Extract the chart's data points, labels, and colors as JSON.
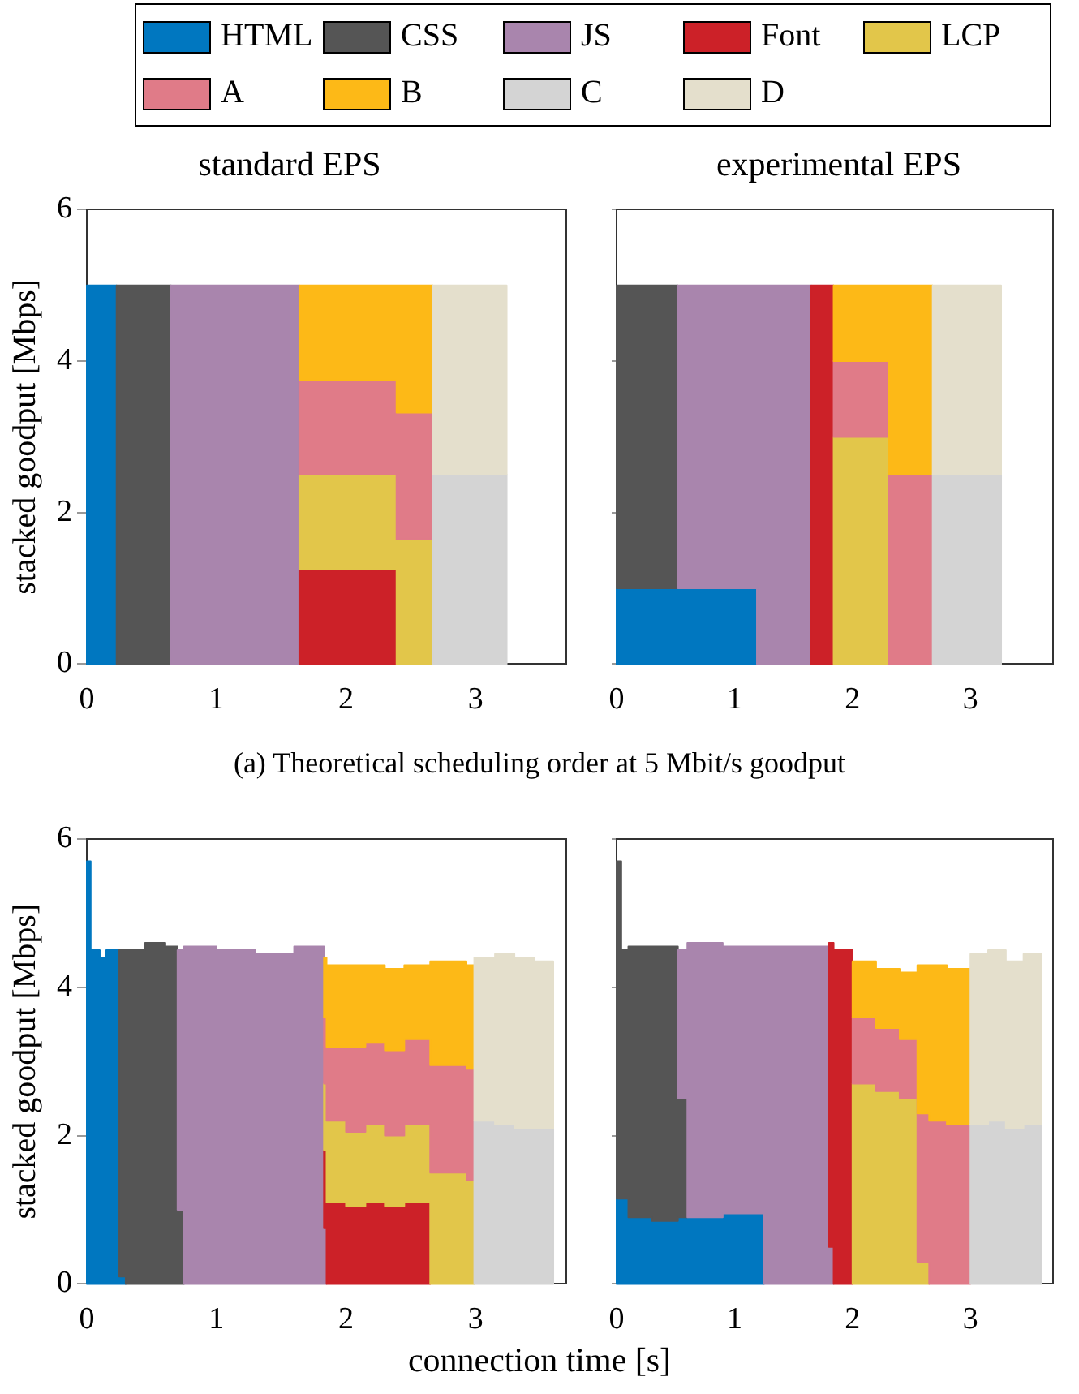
{
  "chart_data": [
    {
      "type": "area",
      "stacked": true,
      "title": "standard EPS",
      "ylabel": "stacked goodput [Mbps]",
      "legend": "top",
      "annotations": [
        "(a) Theoretical scheduling order at 5 Mbit/s goodput"
      ],
      "x": [
        0,
        0.23,
        0.23,
        0.65,
        0.65,
        1.64,
        1.64,
        2.39,
        2.39,
        2.67,
        2.67,
        3.24
      ],
      "xlim": [
        0,
        3.7
      ],
      "xticks": [
        0,
        1,
        2,
        3
      ],
      "ylim": [
        0,
        6
      ],
      "yticks": [
        0,
        2,
        4,
        6
      ],
      "series": [
        {
          "name": "HTML",
          "color": "#0077c0",
          "values": [
            5,
            5,
            null,
            null,
            null,
            null,
            null,
            null,
            null,
            null,
            null,
            null
          ]
        },
        {
          "name": "CSS",
          "color": "#555555",
          "values": [
            null,
            null,
            5,
            5,
            null,
            null,
            null,
            null,
            null,
            null,
            null,
            null
          ]
        },
        {
          "name": "JS",
          "color": "#a985ad",
          "values": [
            null,
            null,
            null,
            null,
            5,
            5,
            null,
            null,
            null,
            null,
            null,
            null
          ]
        },
        {
          "name": "Font",
          "color": "#cc2128",
          "values": [
            null,
            null,
            null,
            null,
            null,
            null,
            1.25,
            1.25,
            null,
            null,
            null,
            null
          ]
        },
        {
          "name": "LCP",
          "color": "#e2c64a",
          "values": [
            null,
            null,
            null,
            null,
            null,
            null,
            1.25,
            1.25,
            1.65,
            1.65,
            null,
            null
          ]
        },
        {
          "name": "A",
          "color": "#e07b88",
          "values": [
            null,
            null,
            null,
            null,
            null,
            null,
            1.25,
            1.25,
            1.67,
            1.67,
            null,
            null
          ]
        },
        {
          "name": "B",
          "color": "#fdb917",
          "values": [
            null,
            null,
            null,
            null,
            null,
            null,
            1.25,
            1.25,
            1.68,
            1.68,
            null,
            null
          ]
        },
        {
          "name": "C",
          "color": "#d4d4d4",
          "values": [
            null,
            null,
            null,
            null,
            null,
            null,
            null,
            null,
            null,
            null,
            2.5,
            2.5
          ]
        },
        {
          "name": "D",
          "color": "#e4dfcc",
          "values": [
            null,
            null,
            null,
            null,
            null,
            null,
            null,
            null,
            null,
            null,
            2.5,
            2.5
          ]
        }
      ]
    },
    {
      "type": "area",
      "stacked": true,
      "title": "experimental EPS",
      "tick_labels": "x",
      "x": [
        0,
        0.52,
        0.52,
        1.19,
        1.19,
        1.65,
        1.65,
        1.84,
        1.84,
        2.31,
        2.31,
        2.68,
        2.68,
        3.26
      ],
      "xlim": [
        0,
        3.7
      ],
      "xticks": [
        0,
        1,
        2,
        3
      ],
      "ylim": [
        0,
        6
      ],
      "yticks": [
        0,
        2,
        4,
        6
      ],
      "series": [
        {
          "color": "#0077c0",
          "values": [
            1,
            1,
            1,
            1,
            null,
            null,
            null,
            null,
            null,
            null,
            null,
            null,
            null,
            null
          ]
        },
        {
          "color": "#555555",
          "values": [
            4,
            4,
            null,
            null,
            null,
            null,
            null,
            null,
            null,
            null,
            null,
            null,
            null,
            null
          ]
        },
        {
          "color": "#a985ad",
          "values": [
            null,
            null,
            4,
            4,
            5,
            5,
            null,
            null,
            null,
            null,
            null,
            null,
            null,
            null
          ]
        },
        {
          "color": "#cc2128",
          "values": [
            null,
            null,
            null,
            null,
            null,
            null,
            5,
            5,
            null,
            null,
            null,
            null,
            null,
            null
          ]
        },
        {
          "color": "#e2c64a",
          "values": [
            null,
            null,
            null,
            null,
            null,
            null,
            null,
            null,
            3,
            3,
            null,
            null,
            null,
            null
          ]
        },
        {
          "color": "#e07b88",
          "values": [
            null,
            null,
            null,
            null,
            null,
            null,
            null,
            null,
            1,
            1,
            2.5,
            2.5,
            null,
            null
          ]
        },
        {
          "color": "#fdb917",
          "values": [
            null,
            null,
            null,
            null,
            null,
            null,
            null,
            null,
            1,
            1,
            2.5,
            2.5,
            null,
            null
          ]
        },
        {
          "color": "#d4d4d4",
          "values": [
            null,
            null,
            null,
            null,
            null,
            null,
            null,
            null,
            null,
            null,
            null,
            null,
            2.5,
            2.5
          ]
        },
        {
          "color": "#e4dfcc",
          "values": [
            null,
            null,
            null,
            null,
            null,
            null,
            null,
            null,
            null,
            null,
            null,
            null,
            2.5,
            2.5
          ]
        }
      ]
    },
    {
      "type": "area",
      "stacked": true,
      "ylabel": "stacked goodput [Mbps]",
      "xlabel": "connection time [s]",
      "x": [
        0,
        0.03,
        0.03,
        0.1,
        0.1,
        0.15,
        0.15,
        0.25,
        0.25,
        0.3,
        0.3,
        0.45,
        0.45,
        0.6,
        0.6,
        0.7,
        0.7,
        0.75,
        0.75,
        1.0,
        1.0,
        1.3,
        1.3,
        1.6,
        1.6,
        1.83,
        1.83,
        1.85,
        1.85,
        2.0,
        2.0,
        2.15,
        2.15,
        2.3,
        2.3,
        2.45,
        2.45,
        2.65,
        2.65,
        2.8,
        2.8,
        2.93,
        2.93,
        2.99,
        2.99,
        3.15,
        3.15,
        3.3,
        3.3,
        3.45,
        3.45,
        3.6
      ],
      "xlim": [
        0,
        3.7
      ],
      "xticks": [
        0,
        1,
        2,
        3
      ],
      "ylim": [
        0,
        6
      ],
      "yticks": [
        0,
        2,
        4,
        6
      ],
      "series": [
        {
          "color": "#0077c0",
          "values": [
            5.7,
            5.7,
            4.5,
            4.5,
            4.4,
            4.4,
            4.5,
            4.5,
            0.1,
            0.1,
            null,
            null,
            null,
            null,
            null,
            null,
            null,
            null,
            null,
            null,
            null,
            null,
            null,
            null,
            null,
            null,
            null,
            null,
            null,
            null,
            null,
            null,
            null,
            null,
            null,
            null,
            null,
            null,
            null,
            null,
            null,
            null,
            null,
            null,
            null,
            null,
            null,
            null,
            null,
            null,
            null,
            null
          ]
        },
        {
          "color": "#555555",
          "values": [
            null,
            null,
            null,
            null,
            null,
            null,
            null,
            null,
            4.4,
            4.4,
            4.5,
            4.5,
            4.6,
            4.6,
            4.55,
            4.55,
            1.0,
            1.0,
            null,
            null,
            null,
            null,
            null,
            null,
            null,
            null,
            null,
            null,
            null,
            null,
            null,
            null,
            null,
            null,
            null,
            null,
            null,
            null,
            null,
            null,
            null,
            null,
            null,
            null,
            null,
            null,
            null,
            null,
            null,
            null,
            null,
            null
          ]
        },
        {
          "color": "#a985ad",
          "values": [
            null,
            null,
            null,
            null,
            null,
            null,
            null,
            null,
            null,
            null,
            null,
            null,
            null,
            null,
            null,
            null,
            3.5,
            3.5,
            4.55,
            4.55,
            4.5,
            4.5,
            4.45,
            4.45,
            4.55,
            4.55,
            0.75,
            0.75,
            null,
            null,
            null,
            null,
            null,
            null,
            null,
            null,
            null,
            null,
            null,
            null,
            null,
            null,
            null,
            null,
            null,
            null,
            null,
            null,
            null,
            null,
            null,
            null
          ]
        },
        {
          "color": "#cc2128",
          "values": [
            null,
            null,
            null,
            null,
            null,
            null,
            null,
            null,
            null,
            null,
            null,
            null,
            null,
            null,
            null,
            null,
            null,
            null,
            null,
            null,
            null,
            null,
            null,
            null,
            null,
            null,
            1.05,
            1.05,
            1.1,
            1.1,
            1.05,
            1.05,
            1.1,
            1.1,
            1.05,
            1.05,
            1.1,
            1.1,
            null,
            null,
            null,
            null,
            null,
            null,
            null,
            null,
            null,
            null,
            null,
            null,
            null,
            null
          ]
        },
        {
          "color": "#e2c64a",
          "values": [
            null,
            null,
            null,
            null,
            null,
            null,
            null,
            null,
            null,
            null,
            null,
            null,
            null,
            null,
            null,
            null,
            null,
            null,
            null,
            null,
            null,
            null,
            null,
            null,
            null,
            null,
            0.9,
            0.9,
            1.1,
            1.1,
            1.0,
            1.0,
            1.05,
            1.05,
            0.95,
            0.95,
            1.05,
            1.05,
            1.5,
            1.5,
            1.5,
            1.5,
            1.4,
            1.4,
            null,
            null,
            null,
            null,
            null,
            null,
            null,
            null
          ]
        },
        {
          "color": "#e07b88",
          "values": [
            null,
            null,
            null,
            null,
            null,
            null,
            null,
            null,
            null,
            null,
            null,
            null,
            null,
            null,
            null,
            null,
            null,
            null,
            null,
            null,
            null,
            null,
            null,
            null,
            null,
            null,
            0.9,
            0.9,
            1.0,
            1.0,
            1.15,
            1.15,
            1.1,
            1.1,
            1.15,
            1.15,
            1.15,
            1.15,
            1.45,
            1.45,
            1.45,
            1.45,
            1.5,
            1.5,
            null,
            null,
            null,
            null,
            null,
            null,
            null,
            null
          ]
        },
        {
          "color": "#fdb917",
          "values": [
            null,
            null,
            null,
            null,
            null,
            null,
            null,
            null,
            null,
            null,
            null,
            null,
            null,
            null,
            null,
            null,
            null,
            null,
            null,
            null,
            null,
            null,
            null,
            null,
            null,
            null,
            0.8,
            0.8,
            1.1,
            1.1,
            1.1,
            1.1,
            1.05,
            1.05,
            1.1,
            1.1,
            1.0,
            1.0,
            1.4,
            1.4,
            1.4,
            1.4,
            1.4,
            1.4,
            null,
            null,
            null,
            null,
            null,
            null,
            null,
            null
          ]
        },
        {
          "color": "#d4d4d4",
          "values": [
            null,
            null,
            null,
            null,
            null,
            null,
            null,
            null,
            null,
            null,
            null,
            null,
            null,
            null,
            null,
            null,
            null,
            null,
            null,
            null,
            null,
            null,
            null,
            null,
            null,
            null,
            null,
            null,
            null,
            null,
            null,
            null,
            null,
            null,
            null,
            null,
            null,
            null,
            null,
            null,
            null,
            null,
            null,
            null,
            2.2,
            2.2,
            2.15,
            2.15,
            2.1,
            2.1,
            2.1,
            2.1
          ]
        },
        {
          "color": "#e4dfcc",
          "values": [
            null,
            null,
            null,
            null,
            null,
            null,
            null,
            null,
            null,
            null,
            null,
            null,
            null,
            null,
            null,
            null,
            null,
            null,
            null,
            null,
            null,
            null,
            null,
            null,
            null,
            null,
            null,
            null,
            null,
            null,
            null,
            null,
            null,
            null,
            null,
            null,
            null,
            null,
            null,
            null,
            null,
            null,
            null,
            null,
            2.2,
            2.2,
            2.3,
            2.3,
            2.3,
            2.3,
            2.25,
            2.25
          ]
        }
      ]
    },
    {
      "type": "area",
      "stacked": true,
      "tick_labels": "x",
      "x": [
        0,
        0.04,
        0.04,
        0.1,
        0.1,
        0.3,
        0.3,
        0.52,
        0.52,
        0.6,
        0.6,
        0.9,
        0.9,
        1.25,
        1.25,
        1.55,
        1.55,
        1.8,
        1.8,
        1.84,
        1.84,
        2.0,
        2.0,
        2.2,
        2.2,
        2.4,
        2.4,
        2.55,
        2.55,
        2.65,
        2.65,
        2.8,
        2.8,
        3.0,
        3.0,
        3.15,
        3.15,
        3.3,
        3.3,
        3.45,
        3.45,
        3.6
      ],
      "xlim": [
        0,
        3.7
      ],
      "xticks": [
        0,
        1,
        2,
        3
      ],
      "ylim": [
        0,
        6
      ],
      "yticks": [
        0,
        2,
        4,
        6
      ],
      "series": [
        {
          "color": "#0077c0",
          "values": [
            1.15,
            1.15,
            1.15,
            1.15,
            0.9,
            0.9,
            0.85,
            0.85,
            0.9,
            0.9,
            0.9,
            0.9,
            0.95,
            0.95,
            null,
            null,
            null,
            null,
            null,
            null,
            null,
            null,
            null,
            null,
            null,
            null,
            null,
            null,
            null,
            null,
            null,
            null,
            null,
            null,
            null,
            null,
            null,
            null,
            null,
            null,
            null,
            null
          ]
        },
        {
          "color": "#555555",
          "values": [
            4.55,
            4.55,
            3.35,
            3.35,
            3.65,
            3.65,
            3.7,
            3.7,
            1.6,
            1.6,
            null,
            null,
            null,
            null,
            null,
            null,
            null,
            null,
            null,
            null,
            null,
            null,
            null,
            null,
            null,
            null,
            null,
            null,
            null,
            null,
            null,
            null,
            null,
            null,
            null,
            null,
            null,
            null,
            null,
            null,
            null,
            null
          ]
        },
        {
          "color": "#a985ad",
          "values": [
            null,
            null,
            null,
            null,
            null,
            null,
            null,
            null,
            2.0,
            2.0,
            3.7,
            3.7,
            3.6,
            3.6,
            4.55,
            4.55,
            4.55,
            4.55,
            0.5,
            0.5,
            null,
            null,
            null,
            null,
            null,
            null,
            null,
            null,
            null,
            null,
            null,
            null,
            null,
            null,
            null,
            null,
            null,
            null,
            null,
            null,
            null,
            null
          ]
        },
        {
          "color": "#cc2128",
          "values": [
            null,
            null,
            null,
            null,
            null,
            null,
            null,
            null,
            null,
            null,
            null,
            null,
            null,
            null,
            null,
            null,
            null,
            null,
            4.1,
            4.1,
            4.5,
            4.5,
            null,
            null,
            null,
            null,
            null,
            null,
            null,
            null,
            null,
            null,
            null,
            null,
            null,
            null,
            null,
            null,
            null,
            null,
            null,
            null
          ]
        },
        {
          "color": "#e2c64a",
          "values": [
            null,
            null,
            null,
            null,
            null,
            null,
            null,
            null,
            null,
            null,
            null,
            null,
            null,
            null,
            null,
            null,
            null,
            null,
            null,
            null,
            null,
            null,
            2.7,
            2.7,
            2.6,
            2.6,
            2.5,
            2.5,
            0.3,
            0.3,
            null,
            null,
            null,
            null,
            null,
            null,
            null,
            null,
            null,
            null,
            null,
            null
          ]
        },
        {
          "color": "#e07b88",
          "values": [
            null,
            null,
            null,
            null,
            null,
            null,
            null,
            null,
            null,
            null,
            null,
            null,
            null,
            null,
            null,
            null,
            null,
            null,
            null,
            null,
            null,
            null,
            0.9,
            0.9,
            0.85,
            0.85,
            0.8,
            0.8,
            2.0,
            2.0,
            2.2,
            2.2,
            2.15,
            2.15,
            null,
            null,
            null,
            null,
            null,
            null,
            null,
            null
          ]
        },
        {
          "color": "#fdb917",
          "values": [
            null,
            null,
            null,
            null,
            null,
            null,
            null,
            null,
            null,
            null,
            null,
            null,
            null,
            null,
            null,
            null,
            null,
            null,
            null,
            null,
            null,
            null,
            0.75,
            0.75,
            0.8,
            0.8,
            0.9,
            0.9,
            2.0,
            2.0,
            2.1,
            2.1,
            2.1,
            2.1,
            null,
            null,
            null,
            null,
            null,
            null,
            null,
            null
          ]
        },
        {
          "color": "#d4d4d4",
          "values": [
            null,
            null,
            null,
            null,
            null,
            null,
            null,
            null,
            null,
            null,
            null,
            null,
            null,
            null,
            null,
            null,
            null,
            null,
            null,
            null,
            null,
            null,
            null,
            null,
            null,
            null,
            null,
            null,
            null,
            null,
            null,
            null,
            null,
            null,
            2.15,
            2.15,
            2.2,
            2.2,
            2.1,
            2.1,
            2.15,
            2.15
          ]
        },
        {
          "color": "#e4dfcc",
          "values": [
            null,
            null,
            null,
            null,
            null,
            null,
            null,
            null,
            null,
            null,
            null,
            null,
            null,
            null,
            null,
            null,
            null,
            null,
            null,
            null,
            null,
            null,
            null,
            null,
            null,
            null,
            null,
            null,
            null,
            null,
            null,
            null,
            null,
            null,
            2.3,
            2.3,
            2.3,
            2.3,
            2.25,
            2.25,
            2.3,
            2.3
          ]
        }
      ]
    }
  ]
}
